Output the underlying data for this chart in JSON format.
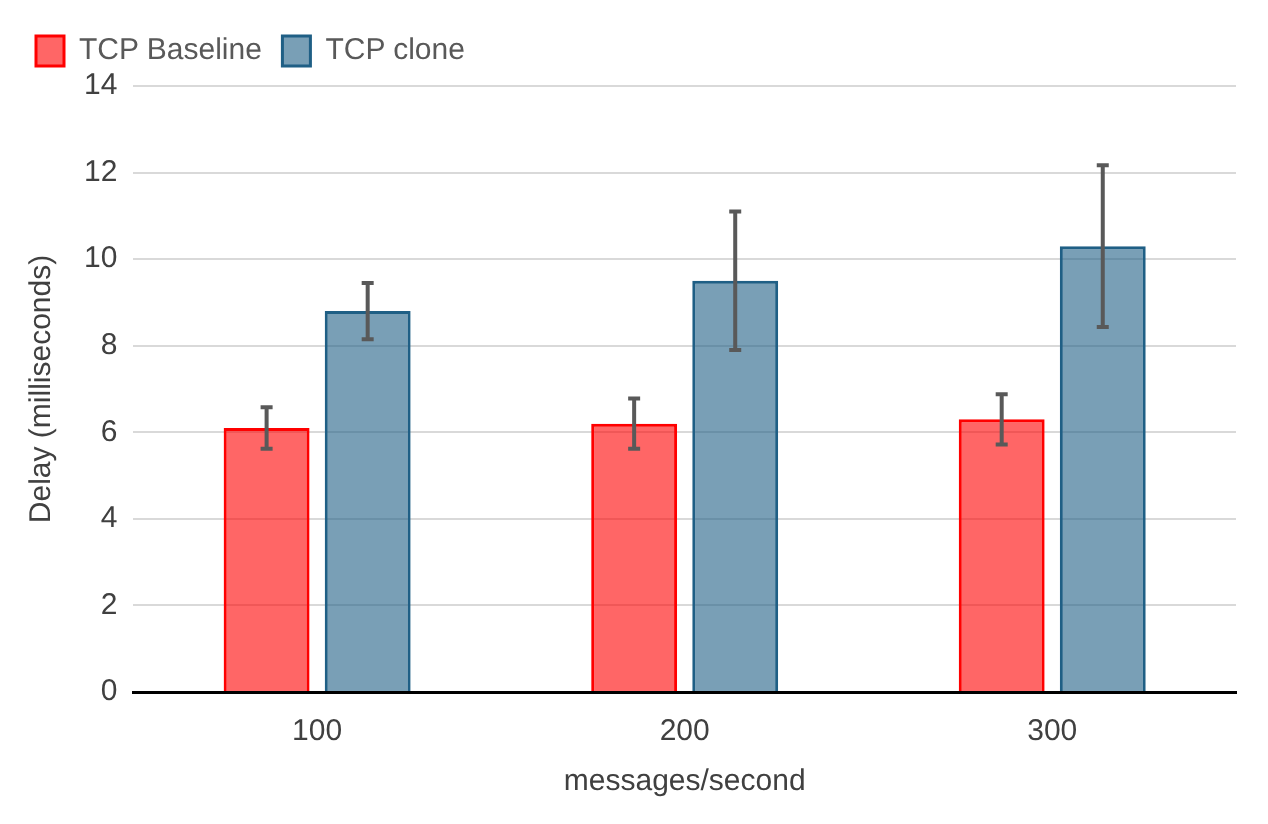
{
  "chart_data": {
    "type": "bar",
    "xlabel": "messages/second",
    "ylabel": "Delay (milliseconds)",
    "categories": [
      "100",
      "200",
      "300"
    ],
    "series": [
      {
        "name": "TCP Baseline",
        "color": "#ff0000",
        "values": [
          6.1,
          6.2,
          6.3
        ],
        "errors": [
          0.48,
          0.58,
          0.58
        ]
      },
      {
        "name": "TCP clone",
        "color": "#1f5f85",
        "values": [
          8.8,
          9.5,
          10.3
        ],
        "errors": [
          0.65,
          1.6,
          1.87
        ]
      }
    ],
    "ylim": [
      0,
      14
    ],
    "yticks": [
      0,
      2,
      4,
      6,
      8,
      10,
      12,
      14
    ],
    "grid": "y",
    "legend": "top left"
  }
}
